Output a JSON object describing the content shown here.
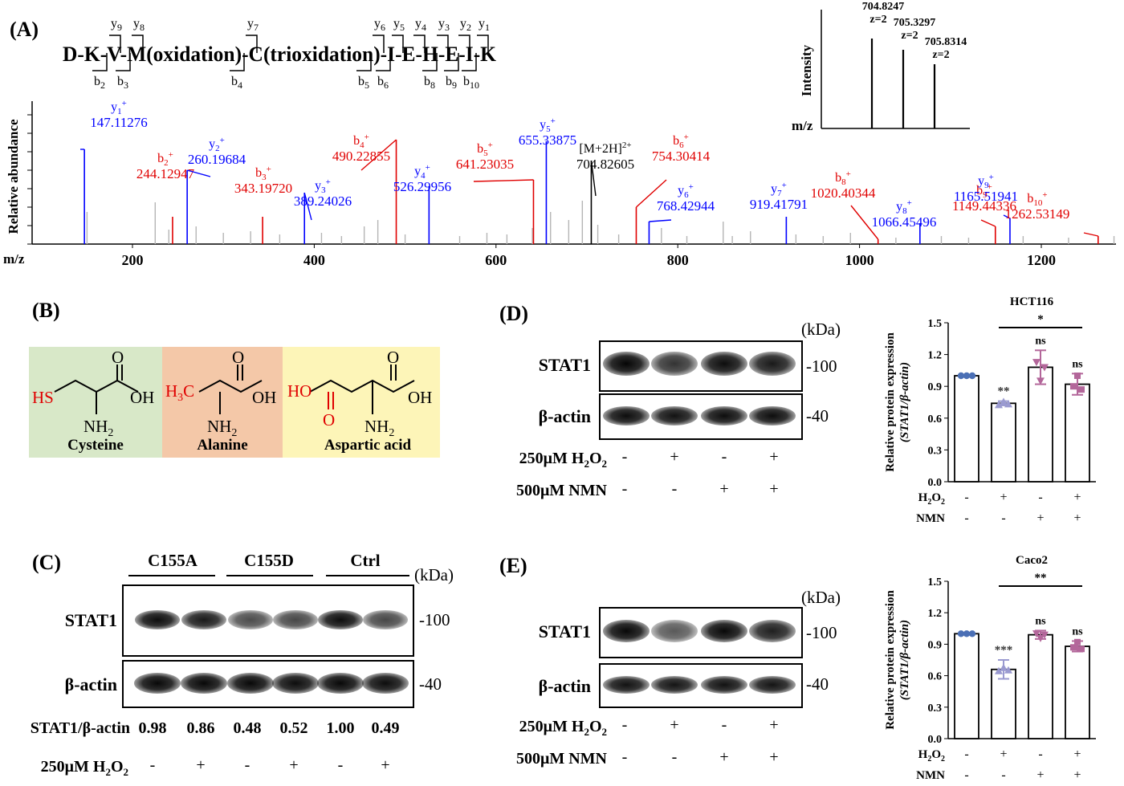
{
  "panelA": {
    "label": "(A)",
    "peptide": "D-K-V-M(oxidation)-C(trioxidation)-I-E-H-E-I-K",
    "y_ions": [
      "y9",
      "y8",
      "y7",
      "y6",
      "y5",
      "y4",
      "y3",
      "y2",
      "y1"
    ],
    "b_ions": [
      "b2",
      "b3",
      "b4",
      "b5",
      "b6",
      "b8",
      "b9",
      "b10"
    ],
    "ylabel": "Relative abundance",
    "xlabel": "m/z",
    "x_ticks": [
      "200",
      "400",
      "600",
      "800",
      "1000",
      "1200"
    ],
    "peaks": [
      {
        "ion": "y1+",
        "mz": "147.11276",
        "color": "#0000ff"
      },
      {
        "ion": "b2+",
        "mz": "244.12947",
        "color": "#e00000"
      },
      {
        "ion": "y2+",
        "mz": "260.19684",
        "color": "#0000ff"
      },
      {
        "ion": "b3+",
        "mz": "343.19720",
        "color": "#e00000"
      },
      {
        "ion": "y3+",
        "mz": "389.24026",
        "color": "#0000ff"
      },
      {
        "ion": "b4+",
        "mz": "490.22855",
        "color": "#e00000"
      },
      {
        "ion": "y4+",
        "mz": "526.29956",
        "color": "#0000ff"
      },
      {
        "ion": "b5+",
        "mz": "641.23035",
        "color": "#e00000"
      },
      {
        "ion": "y5+",
        "mz": "655.33875",
        "color": "#0000ff"
      },
      {
        "ion": "[M+2H]2+",
        "mz": "704.82605",
        "color": "#000000"
      },
      {
        "ion": "b6+",
        "mz": "754.30414",
        "color": "#e00000"
      },
      {
        "ion": "y6+",
        "mz": "768.42944",
        "color": "#0000ff"
      },
      {
        "ion": "y7+",
        "mz": "919.41791",
        "color": "#0000ff"
      },
      {
        "ion": "b8+",
        "mz": "1020.40344",
        "color": "#e00000"
      },
      {
        "ion": "y8+",
        "mz": "1066.45496",
        "color": "#0000ff"
      },
      {
        "ion": "b9+",
        "mz": "1149.44336",
        "color": "#e00000"
      },
      {
        "ion": "y9+",
        "mz": "1165.51941",
        "color": "#0000ff"
      },
      {
        "ion": "b10+",
        "mz": "1262.53149",
        "color": "#e00000"
      }
    ],
    "inset": {
      "ylabel": "Intensity",
      "xlabel": "m/z",
      "peaks": [
        {
          "mz": "704.8247",
          "z": "z=2"
        },
        {
          "mz": "705.3297",
          "z": "z=2"
        },
        {
          "mz": "705.8314",
          "z": "z=2"
        }
      ]
    }
  },
  "panelB": {
    "label": "(B)",
    "molecules": [
      {
        "name": "Cysteine",
        "bg": "#d8e8c8"
      },
      {
        "name": "Alanine",
        "bg": "#f4c8a8"
      },
      {
        "name": "Aspartic acid",
        "bg": "#fdf5b8"
      }
    ]
  },
  "panelC": {
    "label": "(C)",
    "groups": [
      "C155A",
      "C155D",
      "Ctrl"
    ],
    "unit": "(kDa)",
    "rows": [
      {
        "name": "STAT1",
        "mw": "-100"
      },
      {
        "name": "β-actin",
        "mw": "-40"
      }
    ],
    "ratio_label": "STAT1/β-actin",
    "ratios": [
      "0.98",
      "0.86",
      "0.48",
      "0.52",
      "1.00",
      "0.49"
    ],
    "treat_label": "250μM H2O2",
    "treat": [
      "-",
      "+",
      "-",
      "+",
      "-",
      "+"
    ]
  },
  "panelD": {
    "label": "(D)",
    "unit": "(kDa)",
    "rows": [
      {
        "name": "STAT1",
        "mw": "-100"
      },
      {
        "name": "β-actin",
        "mw": "-40"
      }
    ],
    "treatments": [
      {
        "label": "250μM H2O2",
        "signs": [
          "-",
          "+",
          "-",
          "+"
        ]
      },
      {
        "label": "500μM NMN",
        "signs": [
          "-",
          "-",
          "+",
          "+"
        ]
      }
    ]
  },
  "panelE": {
    "label": "(E)",
    "unit": "(kDa)",
    "rows": [
      {
        "name": "STAT1",
        "mw": "-100"
      },
      {
        "name": "β-actin",
        "mw": "-40"
      }
    ],
    "treatments": [
      {
        "label": "250μM H2O2",
        "signs": [
          "-",
          "+",
          "-",
          "+"
        ]
      },
      {
        "label": "500μM NMN",
        "signs": [
          "-",
          "-",
          "+",
          "+"
        ]
      }
    ]
  },
  "chart_data": [
    {
      "type": "bar",
      "title": "HCT116",
      "ylabel": "Relative protein expression (STAT1/β-actin)",
      "ylim": [
        0,
        1.5
      ],
      "yticks": [
        "0.0",
        "0.3",
        "0.6",
        "0.9",
        "1.2",
        "1.5"
      ],
      "row_labels": [
        "H2O2",
        "NMN"
      ],
      "h2o2": [
        "-",
        "+",
        "-",
        "+"
      ],
      "nmn": [
        "-",
        "-",
        "+",
        "+"
      ],
      "values": [
        1.0,
        0.74,
        1.08,
        0.92
      ],
      "errors": [
        0.01,
        0.02,
        0.16,
        0.1
      ],
      "colors": [
        "#4a6fb5",
        "#9a9ad0",
        "#b3669a",
        "#b3669a"
      ],
      "annotations": [
        "",
        "**",
        "ns",
        "ns"
      ],
      "bracket": "*"
    },
    {
      "type": "bar",
      "title": "Caco2",
      "ylabel": "Relative protein expression (STAT1/β-actin)",
      "ylim": [
        0,
        1.5
      ],
      "yticks": [
        "0.0",
        "0.3",
        "0.6",
        "0.9",
        "1.2",
        "1.5"
      ],
      "row_labels": [
        "H2O2",
        "NMN"
      ],
      "h2o2": [
        "-",
        "+",
        "-",
        "+"
      ],
      "nmn": [
        "-",
        "-",
        "+",
        "+"
      ],
      "values": [
        1.0,
        0.66,
        0.99,
        0.88
      ],
      "errors": [
        0.01,
        0.09,
        0.04,
        0.05
      ],
      "colors": [
        "#4a6fb5",
        "#9a9ad0",
        "#b3669a",
        "#b3669a"
      ],
      "annotations": [
        "",
        "***",
        "ns",
        "ns"
      ],
      "bracket": "**"
    }
  ]
}
